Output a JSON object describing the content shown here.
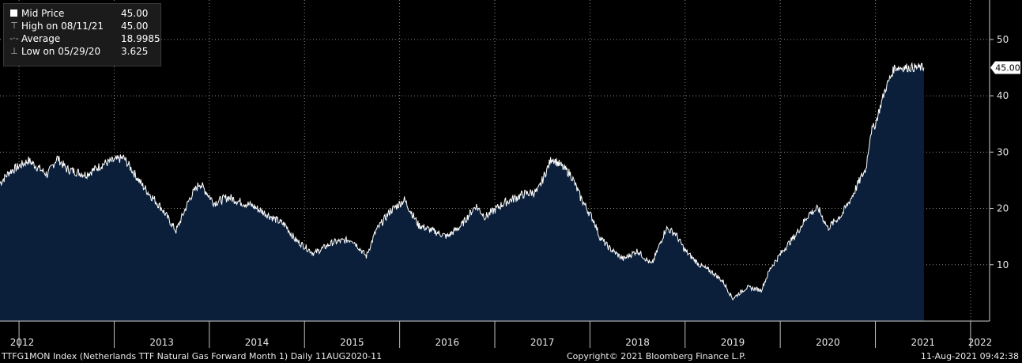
{
  "legend": {
    "rows": [
      {
        "label": "Mid Price",
        "value": "45.00",
        "icon": "white-square"
      },
      {
        "label": "High on 08/11/21",
        "value": "45.00",
        "icon": "high-marker"
      },
      {
        "label": "Average",
        "value": "18.9985",
        "icon": "average-marker"
      },
      {
        "label": "Low on 05/29/20",
        "value": "3.625",
        "icon": "low-marker"
      }
    ]
  },
  "footer": {
    "left": "TTFG1MON Index (Netherlands TTF Natural Gas Forward Month 1)  Daily 11AUG2020-11",
    "center": "Copyright© 2021 Bloomberg Finance L.P.",
    "right": "11-Aug-2021 09:42:38"
  },
  "colors": {
    "background": "#000000",
    "area_fill": "#0b1f3a",
    "line": "#ffffff",
    "grid": "#8a8a8a"
  },
  "chart_data": {
    "type": "area",
    "last_value_label": "45.00",
    "y_ticks": [
      "10",
      "20",
      "30",
      "40",
      "50"
    ],
    "ylim": [
      0,
      57
    ],
    "grid": true,
    "legend_position": "top-left",
    "x_ticks": [
      "2012",
      "2013",
      "2014",
      "2015",
      "2016",
      "2017",
      "2018",
      "2019",
      "2020",
      "2021",
      "2022"
    ],
    "series": [
      {
        "x": [
          2011.9,
          2012.0,
          2012.2,
          2012.4,
          2012.5,
          2012.6,
          2012.8,
          2013.0,
          2013.2,
          2013.4,
          2013.6,
          2013.75,
          2013.9,
          2014.0,
          2014.15,
          2014.3,
          2014.45,
          2014.55,
          2014.7,
          2014.9,
          2015.0,
          2015.2,
          2015.4,
          2015.6,
          2015.75,
          2015.85,
          2016.0,
          2016.15,
          2016.3,
          2016.45,
          2016.6,
          2016.75,
          2016.9,
          2017.0,
          2017.2,
          2017.4,
          2017.55,
          2017.7,
          2017.9,
          2018.0,
          2018.15,
          2018.2,
          2018.3,
          2018.45,
          2018.6,
          2018.75,
          2018.9,
          2019.0,
          2019.1,
          2019.25,
          2019.4,
          2019.5,
          2019.6,
          2019.75,
          2019.9,
          2020.0,
          2020.15,
          2020.25,
          2020.4,
          2020.5,
          2020.6,
          2020.75,
          2020.85,
          2020.95,
          2021.0,
          2021.05,
          2021.1,
          2021.2,
          2021.3,
          2021.4,
          2021.47,
          2021.52,
          2021.56,
          2021.59,
          2021.61
        ],
        "values": [
          24.5,
          26.5,
          28.5,
          26.0,
          29.0,
          27.0,
          26.0,
          28.0,
          29.0,
          24.0,
          20.0,
          16.0,
          22.0,
          24.5,
          21.0,
          22.0,
          21.0,
          20.5,
          19.0,
          17.0,
          14.5,
          12.0,
          14.0,
          14.5,
          11.5,
          16.0,
          19.5,
          21.5,
          17.0,
          16.0,
          15.0,
          17.0,
          20.5,
          18.5,
          21.0,
          22.5,
          23.0,
          29.0,
          26.0,
          22.0,
          17.5,
          15.0,
          13.0,
          11.0,
          12.5,
          10.0,
          16.5,
          15.5,
          12.5,
          10.0,
          8.5,
          7.0,
          4.0,
          6.0,
          5.5,
          9.5,
          13.0,
          15.0,
          19.0,
          20.0,
          16.5,
          19.0,
          22.0,
          25.5,
          27.0,
          33.5,
          35.0,
          41.0,
          45.0,
          45.0,
          45.0,
          45.0,
          45.0,
          45.0,
          45.0
        ]
      }
    ]
  }
}
